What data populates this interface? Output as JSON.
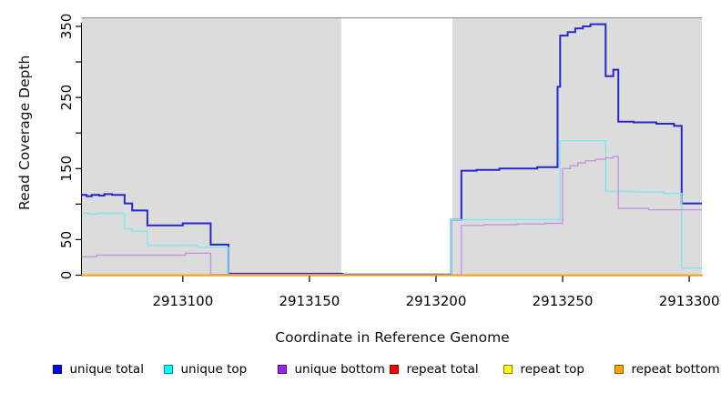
{
  "chart_data": {
    "type": "line",
    "subtype": "step-coverage",
    "title": "",
    "xlabel": "Coordinate in Reference Genome",
    "ylabel": "Read Coverage Depth",
    "xlim": [
      2913060,
      2913305
    ],
    "ylim": [
      0,
      362
    ],
    "grid": false,
    "legend_position": "bottom",
    "plot_bg_color": "#DCDCDC",
    "plot_top_border_color": "#999999",
    "shaded_regions": [
      [
        2913060,
        2913162.5
      ],
      [
        2913206.5,
        2913305
      ]
    ],
    "x_ticks": [
      {
        "v": 2913100,
        "label": "2913100"
      },
      {
        "v": 2913150,
        "label": "2913150"
      },
      {
        "v": 2913200,
        "label": "2913200"
      },
      {
        "v": 2913250,
        "label": "2913250"
      },
      {
        "v": 2913300,
        "label": "2913300"
      }
    ],
    "y_ticks": [
      {
        "v": 0,
        "label": "0"
      },
      {
        "v": 50,
        "label": "50"
      },
      {
        "v": 100,
        "label": ""
      },
      {
        "v": 150,
        "label": "150"
      },
      {
        "v": 200,
        "label": ""
      },
      {
        "v": 250,
        "label": "250"
      },
      {
        "v": 300,
        "label": ""
      },
      {
        "v": 350,
        "label": "350"
      }
    ],
    "series": [
      {
        "name": "unique total",
        "legend_color": "#0000EE",
        "line_color": "#2727CE",
        "line_width": 2,
        "points": [
          [
            2913060,
            113
          ],
          [
            2913062,
            111
          ],
          [
            2913064,
            113
          ],
          [
            2913067,
            112
          ],
          [
            2913069,
            114
          ],
          [
            2913072,
            113
          ],
          [
            2913077,
            101
          ],
          [
            2913080,
            91
          ],
          [
            2913086,
            70
          ],
          [
            2913100,
            73
          ],
          [
            2913111,
            43
          ],
          [
            2913118,
            2
          ],
          [
            2913163,
            1
          ],
          [
            2913206,
            78
          ],
          [
            2913210,
            147
          ],
          [
            2913216,
            148
          ],
          [
            2913225,
            150
          ],
          [
            2913240,
            152
          ],
          [
            2913248,
            265
          ],
          [
            2913249,
            337
          ],
          [
            2913252,
            342
          ],
          [
            2913255,
            347
          ],
          [
            2913258,
            350
          ],
          [
            2913261,
            353
          ],
          [
            2913267,
            280
          ],
          [
            2913270,
            289
          ],
          [
            2913272,
            216
          ],
          [
            2913278,
            215
          ],
          [
            2913287,
            213
          ],
          [
            2913294,
            210
          ],
          [
            2913297,
            101
          ],
          [
            2913305,
            101
          ]
        ]
      },
      {
        "name": "unique top",
        "legend_color": "#00FFFF",
        "line_color": "#7EE8EF",
        "line_width": 1.4,
        "points": [
          [
            2913060,
            87
          ],
          [
            2913063,
            86
          ],
          [
            2913066,
            87
          ],
          [
            2913077,
            65
          ],
          [
            2913080,
            62
          ],
          [
            2913086,
            42
          ],
          [
            2913106,
            39
          ],
          [
            2913118,
            1
          ],
          [
            2913163,
            0.5
          ],
          [
            2913206,
            78
          ],
          [
            2913249,
            189
          ],
          [
            2913267,
            118
          ],
          [
            2913278,
            117
          ],
          [
            2913290,
            115
          ],
          [
            2913297,
            10
          ],
          [
            2913305,
            10
          ]
        ]
      },
      {
        "name": "unique bottom",
        "legend_color": "#A020F0",
        "line_color": "#C495DF",
        "line_width": 1.4,
        "points": [
          [
            2913060,
            26
          ],
          [
            2913066,
            28
          ],
          [
            2913101,
            31
          ],
          [
            2913111,
            1
          ],
          [
            2913163,
            0.5
          ],
          [
            2913210,
            70
          ],
          [
            2913219,
            71
          ],
          [
            2913232,
            72
          ],
          [
            2913243,
            73
          ],
          [
            2913250,
            150
          ],
          [
            2913253,
            154
          ],
          [
            2913256,
            158
          ],
          [
            2913259,
            161
          ],
          [
            2913263,
            163
          ],
          [
            2913267,
            165
          ],
          [
            2913270,
            167
          ],
          [
            2913272,
            94
          ],
          [
            2913284,
            92
          ],
          [
            2913305,
            92
          ]
        ]
      },
      {
        "name": "repeat total",
        "legend_color": "#FF0000",
        "line_color": "#DD0000",
        "line_width": 1.2,
        "points": [
          [
            2913060,
            0
          ],
          [
            2913305,
            0
          ]
        ]
      },
      {
        "name": "repeat top",
        "legend_color": "#FFFF00",
        "line_color": "#F5F500",
        "line_width": 1.2,
        "points": [
          [
            2913060,
            0
          ],
          [
            2913305,
            0
          ]
        ]
      },
      {
        "name": "repeat bottom",
        "legend_color": "#FFA500",
        "line_color": "#FFA500",
        "line_width": 1.8,
        "points": [
          [
            2913060,
            0
          ],
          [
            2913305,
            0
          ]
        ]
      }
    ]
  }
}
